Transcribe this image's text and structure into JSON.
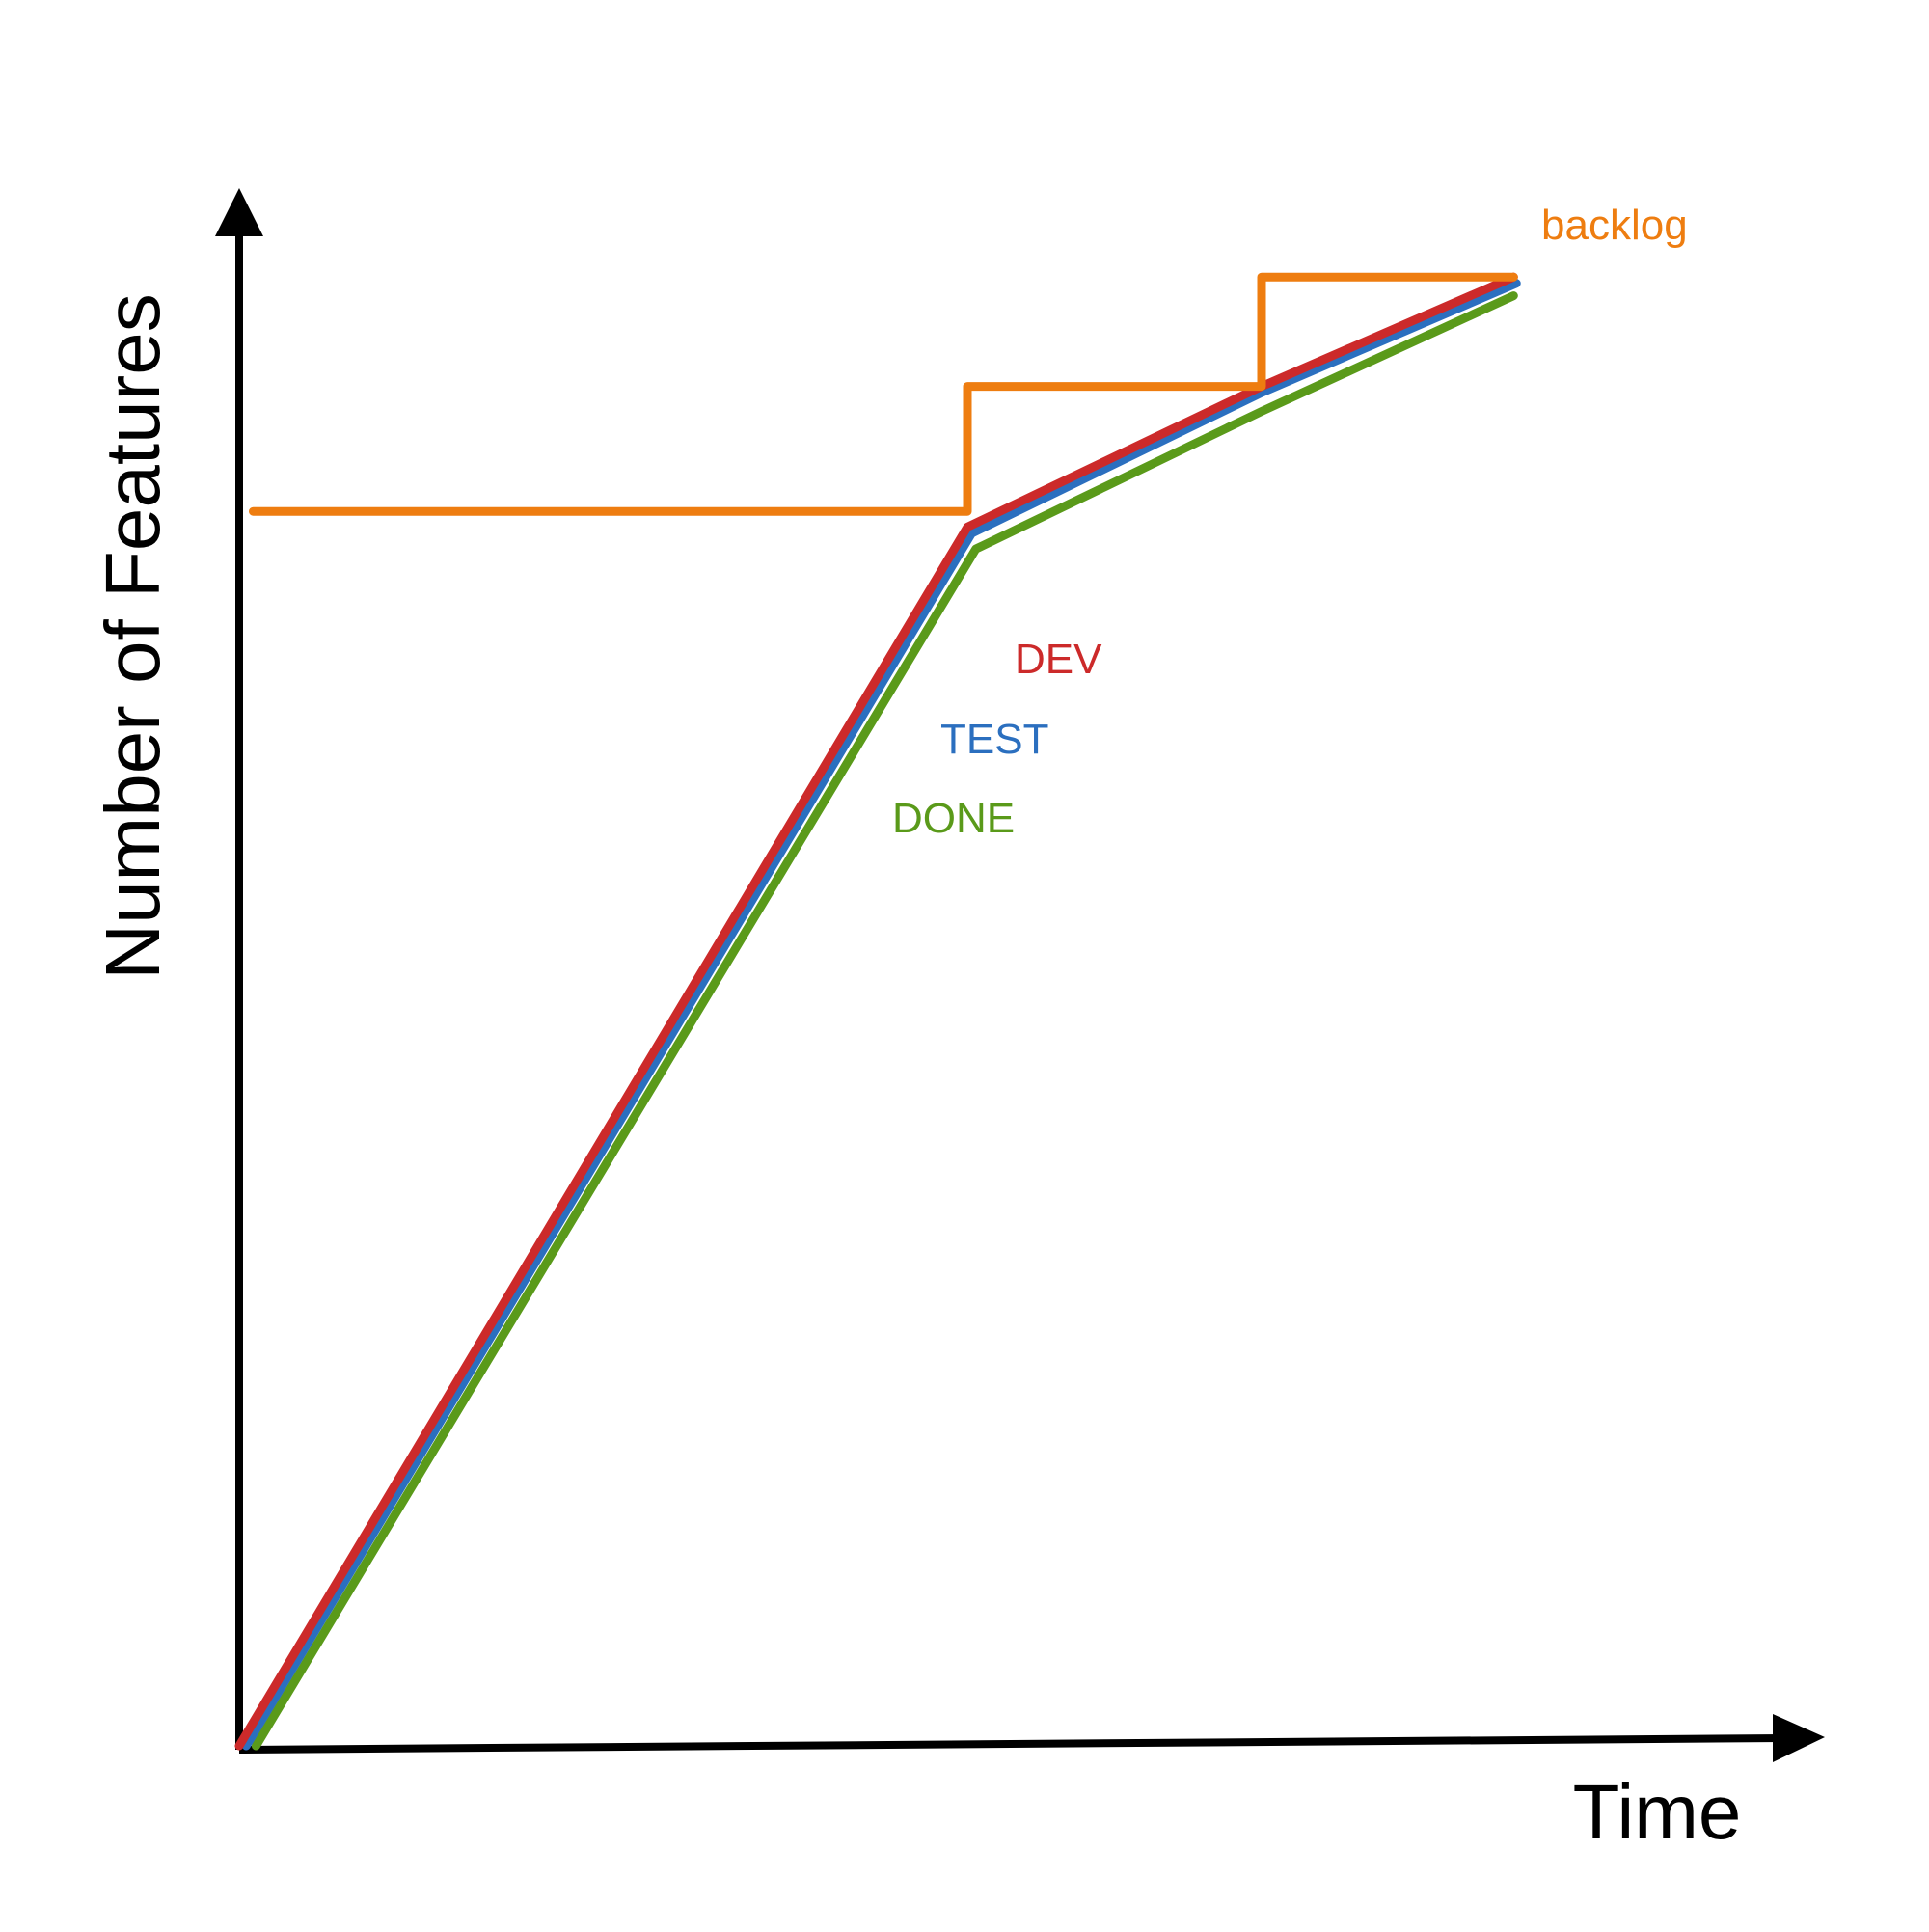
{
  "chart_data": {
    "type": "line",
    "title": "",
    "xlabel": "Time",
    "ylabel": "Number of Features",
    "grid": false,
    "x_ticks": false,
    "y_ticks": false,
    "legend": "inline labels",
    "xlim": [
      0,
      100
    ],
    "ylim": [
      0,
      100
    ],
    "series": [
      {
        "name": "backlog",
        "color": "#ee7d10",
        "step": true,
        "x": [
          1,
          52,
          52,
          73,
          73,
          91
        ],
        "y": [
          79,
          79,
          87,
          87,
          94,
          94
        ]
      },
      {
        "name": "DEV",
        "color": "#cc2a2a",
        "x": [
          0,
          52,
          73,
          91
        ],
        "y": [
          0,
          78,
          87,
          94
        ]
      },
      {
        "name": "TEST",
        "color": "#2b6fbf",
        "x": [
          0.5,
          52.3,
          73,
          91.2
        ],
        "y": [
          0,
          77.6,
          86.6,
          93.6
        ]
      },
      {
        "name": "DONE",
        "color": "#5a9a1a",
        "x": [
          1.2,
          52.6,
          73,
          91
        ],
        "y": [
          0,
          76.6,
          85.4,
          92.8
        ]
      }
    ]
  }
}
